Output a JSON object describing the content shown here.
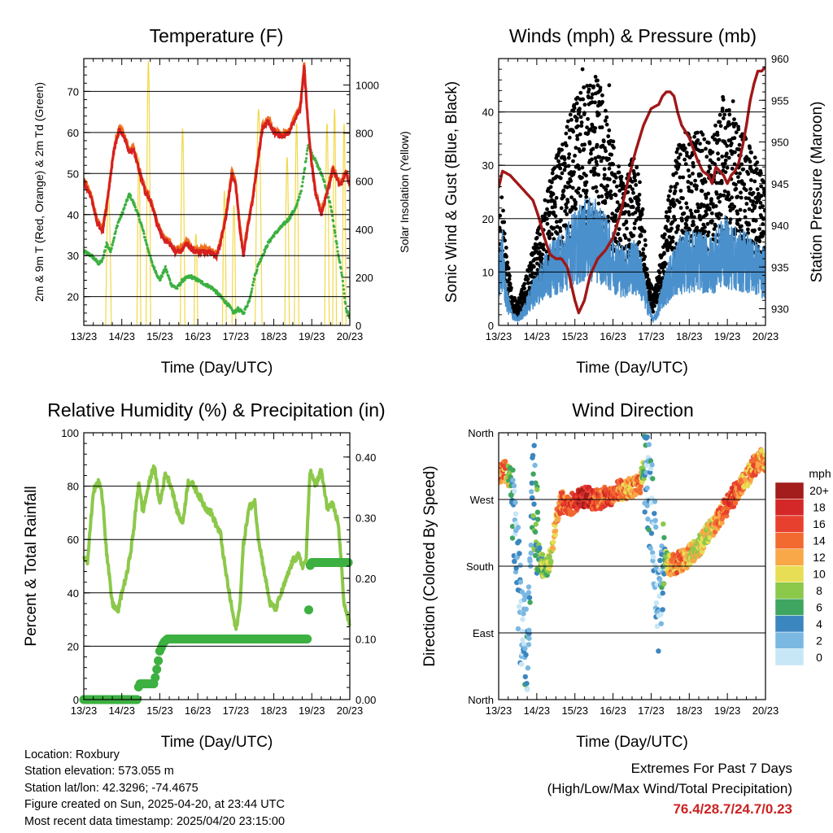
{
  "footer": {
    "location": "Location: Roxbury",
    "elevation": "Station elevation: 573.055 m",
    "latlon": "Station lat/lon: 42.3296; -74.4675",
    "created": "Figure created on Sun, 2025-04-20, at 23:44 UTC",
    "recent": "Most recent data timestamp: 2025/04/20 23:15:00",
    "extremes_title": "Extremes For Past 7 Days",
    "extremes_subtitle": "(High/Low/Max Wind/Total Precipitation)",
    "extremes_values": "76.4/28.7/24.7/0.23"
  },
  "colors": {
    "temp2m": "#d62020",
    "temp9m": "#f07020",
    "dewpoint": "#3cb040",
    "solar": "#f2d84a",
    "gust": "#000000",
    "wind": "#4a90cc",
    "pressure": "#a01818",
    "rh": "#8cc84a",
    "precip": "#3cb040"
  },
  "chart_data": [
    {
      "type": "line",
      "title": "Temperature (F)",
      "xlabel": "Time (Day/UTC)",
      "ylabel": "2m & 9m T (Red, Orange) & 2m Td (Green)",
      "ylabel_right": "Solar Insolation (Yellow)",
      "x_ticks": [
        "13/23",
        "14/23",
        "15/23",
        "16/23",
        "17/23",
        "18/23",
        "19/23",
        "20/23"
      ],
      "y_ticks": [
        "20",
        "30",
        "40",
        "50",
        "60",
        "70"
      ],
      "y_ticks_right": [
        "0",
        "200",
        "400",
        "600",
        "800",
        "1000"
      ],
      "ylim": [
        13,
        78
      ],
      "ylim_right": [
        0,
        1110
      ],
      "xlim": [
        0,
        7
      ],
      "series": [
        {
          "name": "2m T",
          "axis": "left",
          "x": [
            0,
            0.2,
            0.35,
            0.5,
            0.6,
            0.8,
            0.95,
            1.1,
            1.2,
            1.3,
            1.45,
            1.6,
            1.8,
            1.95,
            2.1,
            2.25,
            2.4,
            2.55,
            2.7,
            2.9,
            3.1,
            3.3,
            3.5,
            3.6,
            3.75,
            3.9,
            4.0,
            4.1,
            4.2,
            4.3,
            4.45,
            4.55,
            4.7,
            4.85,
            5.0,
            5.2,
            5.4,
            5.55,
            5.7,
            5.8,
            5.9,
            6.0,
            6.1,
            6.25,
            6.4,
            6.55,
            6.75,
            6.9,
            7.0
          ],
          "values": [
            48,
            44,
            38,
            36,
            42,
            56,
            61,
            58,
            55,
            56,
            51,
            46,
            42,
            37,
            34,
            33,
            31,
            31,
            33,
            31,
            31,
            31,
            30,
            33,
            40,
            50,
            47,
            37,
            30,
            36,
            44,
            51,
            61,
            63,
            60,
            59,
            60,
            63,
            66,
            76,
            62,
            52,
            45,
            40,
            45,
            51,
            47,
            50,
            47
          ]
        },
        {
          "name": "Td",
          "axis": "left",
          "x": [
            0,
            0.2,
            0.4,
            0.5,
            0.6,
            0.7,
            0.9,
            1.0,
            1.2,
            1.35,
            1.5,
            1.65,
            1.8,
            2.0,
            2.15,
            2.3,
            2.45,
            2.6,
            2.8,
            3.0,
            3.2,
            3.4,
            3.6,
            3.8,
            3.95,
            4.05,
            4.2,
            4.35,
            4.5,
            4.6,
            4.7,
            4.85,
            5.0,
            5.2,
            5.4,
            5.6,
            5.75,
            5.9,
            6.0,
            6.15,
            6.3,
            6.5,
            6.65,
            6.8,
            6.9,
            7.0
          ],
          "values": [
            31,
            30,
            28,
            29,
            33,
            31,
            38,
            40,
            45,
            42,
            38,
            33,
            28,
            24,
            27,
            23,
            22,
            24,
            25,
            24,
            23,
            22,
            20,
            18,
            16,
            17,
            16,
            19,
            25,
            28,
            30,
            33,
            35,
            37,
            39,
            42,
            47,
            57,
            55,
            52,
            49,
            42,
            33,
            25,
            17,
            15
          ]
        },
        {
          "name": "Solar",
          "axis": "right",
          "type": "pulses",
          "centers": [
            0.65,
            1.45,
            1.7,
            2.6,
            2.95,
            3.7,
            3.95,
            4.6,
            5.35,
            5.6,
            6.4,
            6.6,
            6.85
          ],
          "heights": [
            550,
            700,
            1100,
            820,
            380,
            560,
            500,
            900,
            700,
            840,
            840,
            900,
            840
          ],
          "widths": [
            0.15,
            0.1,
            0.12,
            0.12,
            0.1,
            0.1,
            0.1,
            0.18,
            0.12,
            0.12,
            0.12,
            0.1,
            0.1
          ]
        }
      ]
    },
    {
      "type": "scatter",
      "title": "Winds (mph) & Pressure (mb)",
      "xlabel": "Time (Day/UTC)",
      "ylabel": "Sonic Wind & Gust (Blue, Black)",
      "ylabel_right": "Station Pressure (Maroon)",
      "x_ticks": [
        "13/23",
        "14/23",
        "15/23",
        "16/23",
        "17/23",
        "18/23",
        "19/23",
        "20/23"
      ],
      "y_ticks": [
        "0",
        "10",
        "20",
        "30",
        "40"
      ],
      "y_ticks_right": [
        "930",
        "935",
        "940",
        "945",
        "950",
        "955",
        "960"
      ],
      "ylim": [
        0,
        50
      ],
      "ylim_right": [
        928,
        960
      ],
      "xlim": [
        0,
        7
      ],
      "series": [
        {
          "name": "Gust",
          "axis": "left",
          "x": [
            0,
            0.1,
            0.2,
            0.35,
            0.5,
            0.7,
            0.9,
            1.1,
            1.3,
            1.5,
            1.7,
            1.9,
            2.1,
            2.3,
            2.5,
            2.7,
            2.9,
            3.1,
            3.3,
            3.5,
            3.7,
            3.9,
            4.05,
            4.15,
            4.3,
            4.5,
            4.7,
            4.9,
            5.1,
            5.3,
            5.5,
            5.7,
            5.9,
            6.1,
            6.3,
            6.5,
            6.7,
            6.9,
            7.0
          ],
          "values": [
            16,
            18,
            10,
            4,
            3,
            6,
            10,
            14,
            18,
            22,
            24,
            28,
            30,
            32,
            33,
            31,
            26,
            22,
            18,
            22,
            20,
            8,
            4,
            6,
            12,
            18,
            24,
            25,
            25,
            26,
            24,
            26,
            30,
            28,
            26,
            24,
            22,
            20,
            18
          ]
        },
        {
          "name": "Wind",
          "axis": "left",
          "x": [
            0,
            0.1,
            0.2,
            0.35,
            0.5,
            0.7,
            0.9,
            1.1,
            1.3,
            1.5,
            1.7,
            1.9,
            2.1,
            2.3,
            2.5,
            2.7,
            2.9,
            3.1,
            3.3,
            3.5,
            3.7,
            3.9,
            4.05,
            4.15,
            4.3,
            4.5,
            4.7,
            4.9,
            5.1,
            5.3,
            5.5,
            5.7,
            5.9,
            6.1,
            6.3,
            6.5,
            6.7,
            6.9,
            7.0
          ],
          "values": [
            10,
            12,
            5,
            2,
            1,
            3,
            6,
            8,
            10,
            11,
            12,
            14,
            15,
            16,
            16,
            15,
            13,
            11,
            10,
            11,
            10,
            4,
            1,
            2,
            6,
            9,
            11,
            12,
            12,
            12,
            11,
            12,
            14,
            13,
            12,
            12,
            11,
            10,
            10
          ]
        },
        {
          "name": "Pressure",
          "axis": "right",
          "type": "line",
          "x": [
            0,
            0.1,
            0.3,
            0.5,
            0.7,
            0.9,
            1.05,
            1.2,
            1.35,
            1.5,
            1.65,
            1.8,
            1.9,
            2.0,
            2.1,
            2.25,
            2.4,
            2.6,
            2.8,
            3.0,
            3.2,
            3.4,
            3.6,
            3.8,
            4.0,
            4.2,
            4.3,
            4.4,
            4.5,
            4.6,
            4.7,
            4.8,
            5.0,
            5.2,
            5.35,
            5.5,
            5.6,
            5.7,
            5.8,
            5.9,
            6.0,
            6.1,
            6.2,
            6.3,
            6.4,
            6.5,
            6.6,
            6.7,
            6.8,
            6.9,
            7.0
          ],
          "values": [
            944.5,
            946.5,
            946,
            945,
            944,
            943,
            941,
            938.5,
            936.5,
            936,
            936,
            935,
            933,
            931,
            929.5,
            931,
            934,
            936,
            937,
            938.5,
            941.5,
            945.5,
            949,
            952,
            954,
            954.5,
            955.5,
            956,
            956,
            955.5,
            953.5,
            952,
            950.5,
            948,
            946.5,
            946,
            945,
            947,
            946.5,
            946,
            945,
            946,
            946.5,
            947.5,
            949.5,
            952,
            955,
            957,
            958.5,
            958.5,
            959
          ]
        }
      ]
    },
    {
      "type": "line",
      "title": "Relative Humidity (%) & Precipitation (in)",
      "xlabel": "Time (Day/UTC)",
      "ylabel": "Percent & Total Rainfall",
      "x_ticks": [
        "13/23",
        "14/23",
        "15/23",
        "16/23",
        "17/23",
        "18/23",
        "19/23",
        "20/23"
      ],
      "y_ticks": [
        "0",
        "20",
        "40",
        "60",
        "80",
        "100"
      ],
      "y_ticks_right": [
        "0.00",
        "0.10",
        "0.20",
        "0.30",
        "0.40"
      ],
      "ylim": [
        0,
        100
      ],
      "ylim_right": [
        0,
        0.44
      ],
      "xlim": [
        0,
        7
      ],
      "series": [
        {
          "name": "RH",
          "axis": "left",
          "x": [
            0,
            0.1,
            0.25,
            0.4,
            0.5,
            0.6,
            0.75,
            0.9,
            1.0,
            1.15,
            1.3,
            1.45,
            1.55,
            1.7,
            1.85,
            2.0,
            2.15,
            2.3,
            2.45,
            2.6,
            2.75,
            2.9,
            3.05,
            3.2,
            3.35,
            3.5,
            3.6,
            3.7,
            3.85,
            4.0,
            4.1,
            4.2,
            4.35,
            4.5,
            4.6,
            4.75,
            4.9,
            5.05,
            5.2,
            5.35,
            5.5,
            5.65,
            5.75,
            5.85,
            5.95,
            6.1,
            6.25,
            6.4,
            6.55,
            6.7,
            6.85,
            7.0
          ],
          "values": [
            54,
            52,
            78,
            82,
            75,
            55,
            36,
            33,
            40,
            48,
            62,
            82,
            70,
            80,
            88,
            73,
            85,
            80,
            71,
            66,
            82,
            80,
            76,
            72,
            70,
            65,
            62,
            51,
            38,
            26,
            34,
            58,
            72,
            74,
            60,
            48,
            36,
            34,
            40,
            46,
            52,
            54,
            50,
            52,
            86,
            80,
            86,
            72,
            73,
            66,
            36,
            28
          ]
        },
        {
          "name": "Precip",
          "axis": "right",
          "type": "step",
          "x": [
            0,
            1.4,
            1.45,
            1.85,
            1.95,
            2.0,
            2.1,
            2.2,
            5.9,
            5.95,
            6.0,
            7.0
          ],
          "values": [
            0,
            0,
            0.026,
            0.026,
            0.06,
            0.08,
            0.094,
            0.1,
            0.1,
            0.22,
            0.226,
            0.226
          ]
        }
      ]
    },
    {
      "type": "scatter",
      "title": "Wind Direction",
      "xlabel": "Time (Day/UTC)",
      "ylabel": "Direction (Colored By Speed)",
      "x_ticks": [
        "13/23",
        "14/23",
        "15/23",
        "16/23",
        "17/23",
        "18/23",
        "19/23",
        "20/23"
      ],
      "y_ticks": [
        "North",
        "East",
        "South",
        "West",
        "North"
      ],
      "ylim": [
        0,
        360
      ],
      "xlim": [
        0,
        7
      ],
      "legend_title": "mph",
      "legend_labels": [
        "20+",
        "18",
        "16",
        "14",
        "12",
        "10",
        "8",
        "6",
        "4",
        "2",
        "0"
      ],
      "legend_colors": [
        "#a31d1d",
        "#d42727",
        "#e8402f",
        "#f26a30",
        "#f8a848",
        "#e7de55",
        "#8cc84a",
        "#3ea661",
        "#3c86c0",
        "#7ab8e2",
        "#c7e6f6"
      ],
      "series": [
        {
          "name": "Direction",
          "x": [
            0,
            0.15,
            0.3,
            0.45,
            0.6,
            0.75,
            0.9,
            1.05,
            1.2,
            1.35,
            1.5,
            1.65,
            1.8,
            1.95,
            2.1,
            2.3,
            2.5,
            2.7,
            2.9,
            3.1,
            3.3,
            3.5,
            3.7,
            3.85,
            4.05,
            4.2,
            4.35,
            4.5,
            4.7,
            4.9,
            5.1,
            5.3,
            5.5,
            5.7,
            5.9,
            6.1,
            6.3,
            6.5,
            6.7,
            6.9,
            7.0
          ],
          "values": [
            305,
            310,
            300,
            200,
            100,
            60,
            290,
            200,
            170,
            190,
            240,
            270,
            260,
            265,
            270,
            275,
            268,
            272,
            275,
            280,
            285,
            285,
            290,
            320,
            240,
            120,
            190,
            180,
            185,
            190,
            200,
            210,
            225,
            240,
            255,
            270,
            285,
            300,
            315,
            325,
            320
          ],
          "speeds": [
            12,
            14,
            8,
            2,
            1,
            3,
            5,
            6,
            8,
            10,
            12,
            14,
            16,
            16,
            18,
            18,
            16,
            14,
            16,
            14,
            12,
            12,
            14,
            4,
            2,
            1,
            6,
            12,
            14,
            12,
            10,
            10,
            10,
            12,
            14,
            16,
            14,
            12,
            14,
            12,
            12
          ]
        }
      ]
    }
  ]
}
